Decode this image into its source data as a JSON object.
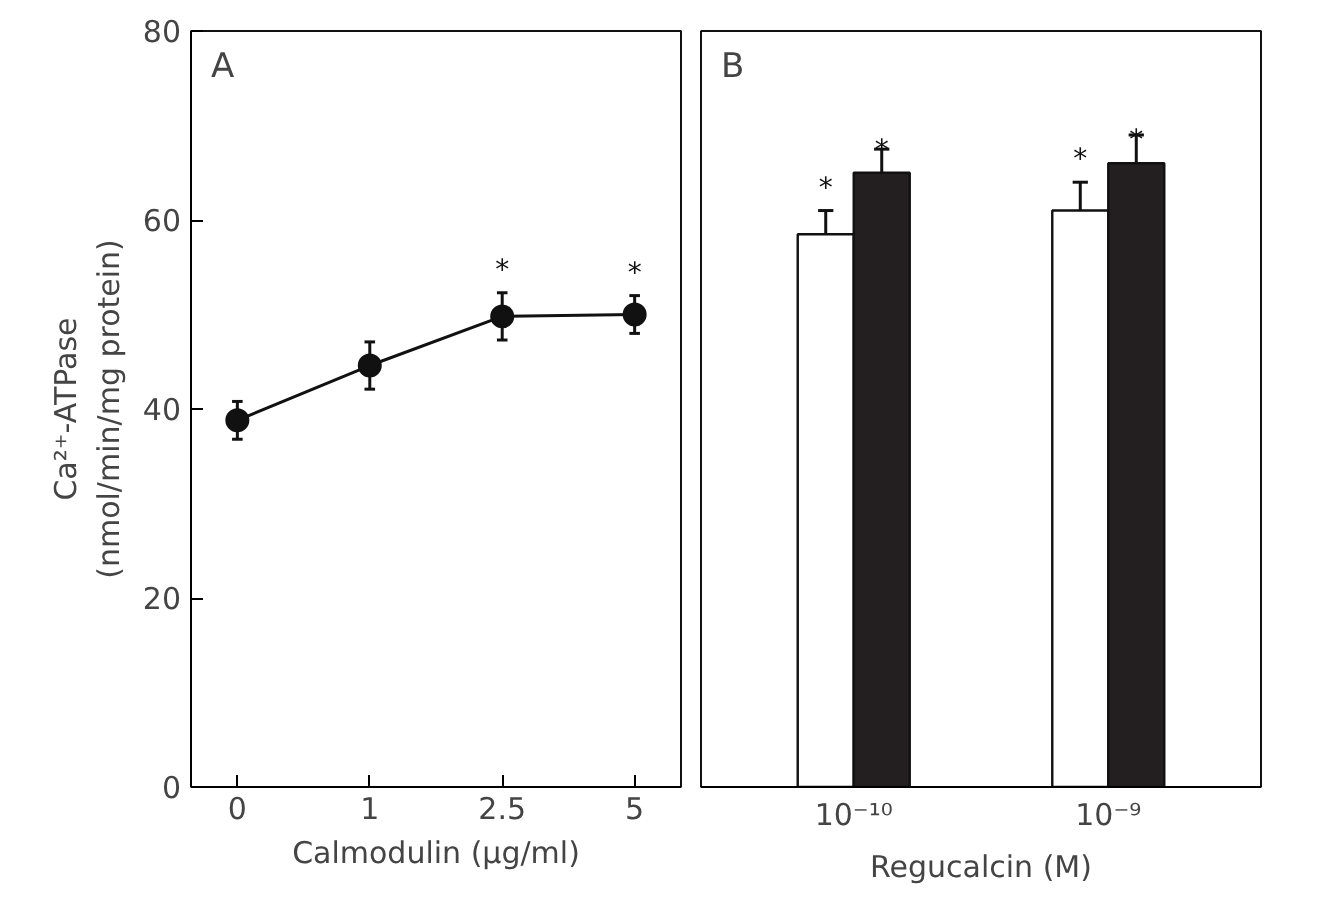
{
  "chart_data": [
    {
      "type": "line",
      "categories": [
        "0",
        "1",
        "2.5",
        "5"
      ],
      "xlabel": "Calmodulin (μg/ml)",
      "ylabel": "Ca²⁺-ATPase\n(nmol/min/mg protein)",
      "series": [
        {
          "color": "#111111",
          "values": [
            38.8,
            44.6,
            49.8,
            50.0
          ],
          "errors": [
            2,
            2.5,
            2.5,
            2
          ]
        }
      ],
      "ylim": [
        0,
        80
      ],
      "yticks": [
        0,
        20,
        40,
        60,
        80
      ],
      "marker": "circle",
      "line_style": "solid",
      "grid": false,
      "annotations": [
        "A",
        {
          "text": "*",
          "x": "2.5",
          "y": 52.3
        },
        {
          "text": "*",
          "x": "5",
          "y": 52.0
        }
      ]
    },
    {
      "type": "bar",
      "categories": [
        "10⁻¹⁰",
        "10⁻⁹"
      ],
      "xlabel": "Regucalcin (M)",
      "series": [
        {
          "color": "#ffffff",
          "values": [
            58.5,
            61
          ],
          "errors": [
            2.5,
            3
          ]
        },
        {
          "color": "#231f20",
          "values": [
            65,
            66
          ],
          "errors": [
            2.5,
            3
          ]
        }
      ],
      "ylim": [
        0,
        80
      ],
      "yticks": [
        0,
        20,
        40,
        60,
        80
      ],
      "tick_labels": "x",
      "grid": false,
      "annotations": [
        "B",
        {
          "text": "*",
          "x": "10⁻¹⁰",
          "y": 61
        },
        {
          "text": "*",
          "x": "10⁻¹⁰",
          "y": 65
        },
        {
          "text": "*",
          "x": "10⁻⁹",
          "y": 64
        },
        {
          "text": "*",
          "x": "10⁻⁹",
          "y": 66
        }
      ]
    }
  ]
}
